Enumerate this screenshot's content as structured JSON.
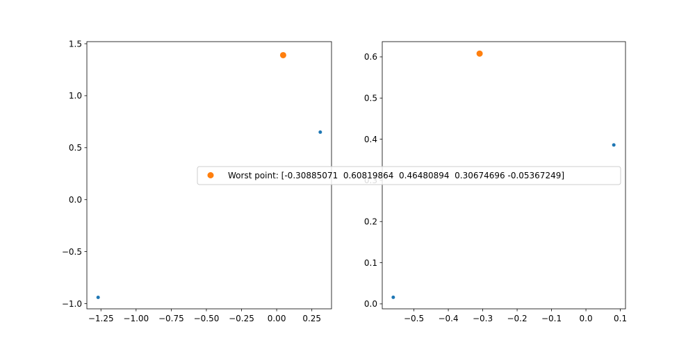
{
  "chart_data": [
    {
      "type": "scatter",
      "title": "",
      "xlabel": "",
      "ylabel": "",
      "xlim": [
        -1.35,
        0.39
      ],
      "ylim": [
        -1.05,
        1.52
      ],
      "xticks": [
        -1.25,
        -1.0,
        -0.75,
        -0.5,
        -0.25,
        0.0,
        0.25
      ],
      "xtick_labels": [
        "−1.25",
        "−1.00",
        "−0.75",
        "−0.50",
        "−0.25",
        "0.00",
        "0.25"
      ],
      "yticks": [
        -1.0,
        -0.5,
        0.0,
        0.5,
        1.0,
        1.5
      ],
      "ytick_labels": [
        "−1.0",
        "−0.5",
        "0.0",
        "0.5",
        "1.0",
        "1.5"
      ],
      "grid": false,
      "series": [
        {
          "color": "#1f77b4",
          "marker_size": "small",
          "points": [
            {
              "x": -1.27,
              "y": -0.94
            },
            {
              "x": 0.31,
              "y": 0.65
            }
          ]
        },
        {
          "name": "Worst point: [-0.30885071  0.60819864  0.46480894  0.30674696 -0.05367249]",
          "color": "#ff7f0e",
          "marker_size": "large",
          "points": [
            {
              "x": 0.046,
              "y": 1.39
            }
          ]
        }
      ]
    },
    {
      "type": "scatter",
      "title": "",
      "xlabel": "",
      "ylabel": "",
      "xlim": [
        -0.592,
        0.115
      ],
      "ylim": [
        -0.012,
        0.637
      ],
      "xticks": [
        -0.5,
        -0.4,
        -0.3,
        -0.2,
        -0.1,
        0.0,
        0.1
      ],
      "xtick_labels": [
        "−0.5",
        "−0.4",
        "−0.3",
        "−0.2",
        "−0.1",
        "0.0",
        "0.1"
      ],
      "yticks": [
        0.0,
        0.1,
        0.2,
        0.3,
        0.4,
        0.5,
        0.6
      ],
      "ytick_labels": [
        "0.0",
        "0.1",
        "0.2",
        "0.3",
        "0.4",
        "0.5",
        "0.6"
      ],
      "grid": false,
      "series": [
        {
          "color": "#1f77b4",
          "marker_size": "small",
          "points": [
            {
              "x": -0.56,
              "y": 0.016
            },
            {
              "x": 0.081,
              "y": 0.386
            }
          ]
        },
        {
          "name": "Worst point: [-0.30885071  0.60819864  0.46480894  0.30674696 -0.05367249]",
          "color": "#ff7f0e",
          "marker_size": "large",
          "points": [
            {
              "x": -0.309,
              "y": 0.608
            }
          ]
        }
      ]
    }
  ],
  "legend": {
    "placement": "center",
    "label": "Worst point: [-0.30885071  0.60819864  0.46480894  0.30674696 -0.05367249]",
    "marker_color": "#ff7f0e"
  }
}
